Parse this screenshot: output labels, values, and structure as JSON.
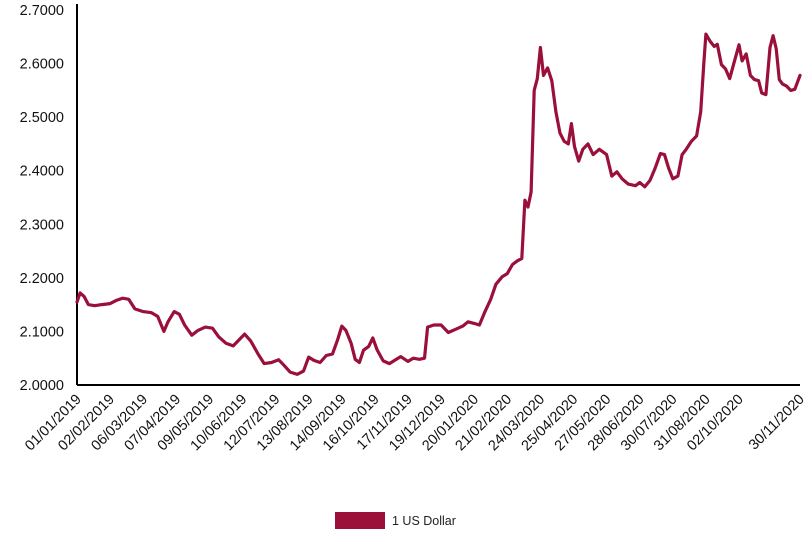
{
  "chart_data": {
    "type": "line",
    "title": "",
    "xlabel": "",
    "ylabel": "",
    "ylim": [
      2.0,
      2.7
    ],
    "y_ticks": [
      "2.0000",
      "2.1000",
      "2.2000",
      "2.3000",
      "2.4000",
      "2.5000",
      "2.6000",
      "2.7000"
    ],
    "x_ticks": [
      "01/01/2019",
      "02/02/2019",
      "06/03/2019",
      "07/04/2019",
      "09/05/2019",
      "10/06/2019",
      "12/07/2019",
      "13/08/2019",
      "14/09/2019",
      "16/10/2019",
      "17/11/2019",
      "19/12/2019",
      "20/01/2020",
      "21/02/2020",
      "24/03/2020",
      "25/04/2020",
      "27/05/2020",
      "28/06/2020",
      "30/07/2020",
      "31/08/2020",
      "02/10/2020",
      "30/11/2020"
    ],
    "grid": false,
    "legend_position": "bottom",
    "color": "#9b0f3b",
    "series": [
      {
        "name": "1 US Dollar",
        "points": [
          [
            "2019-01-01",
            2.155
          ],
          [
            "2019-01-04",
            2.172
          ],
          [
            "2019-01-08",
            2.165
          ],
          [
            "2019-01-12",
            2.15
          ],
          [
            "2019-01-18",
            2.148
          ],
          [
            "2019-01-25",
            2.15
          ],
          [
            "2019-02-02",
            2.152
          ],
          [
            "2019-02-08",
            2.158
          ],
          [
            "2019-02-14",
            2.162
          ],
          [
            "2019-02-20",
            2.16
          ],
          [
            "2019-02-26",
            2.142
          ],
          [
            "2019-03-06",
            2.137
          ],
          [
            "2019-03-14",
            2.135
          ],
          [
            "2019-03-20",
            2.128
          ],
          [
            "2019-03-26",
            2.1
          ],
          [
            "2019-03-30",
            2.118
          ],
          [
            "2019-04-05",
            2.137
          ],
          [
            "2019-04-10",
            2.132
          ],
          [
            "2019-04-15",
            2.112
          ],
          [
            "2019-04-22",
            2.093
          ],
          [
            "2019-04-28",
            2.102
          ],
          [
            "2019-05-05",
            2.108
          ],
          [
            "2019-05-12",
            2.106
          ],
          [
            "2019-05-18",
            2.09
          ],
          [
            "2019-05-25",
            2.078
          ],
          [
            "2019-06-01",
            2.073
          ],
          [
            "2019-06-07",
            2.085
          ],
          [
            "2019-06-12",
            2.095
          ],
          [
            "2019-06-18",
            2.082
          ],
          [
            "2019-06-25",
            2.058
          ],
          [
            "2019-07-01",
            2.04
          ],
          [
            "2019-07-08",
            2.042
          ],
          [
            "2019-07-15",
            2.047
          ],
          [
            "2019-07-20",
            2.037
          ],
          [
            "2019-07-26",
            2.024
          ],
          [
            "2019-08-02",
            2.02
          ],
          [
            "2019-08-08",
            2.026
          ],
          [
            "2019-08-13",
            2.052
          ],
          [
            "2019-08-18",
            2.046
          ],
          [
            "2019-08-24",
            2.042
          ],
          [
            "2019-08-30",
            2.055
          ],
          [
            "2019-09-05",
            2.058
          ],
          [
            "2019-09-10",
            2.085
          ],
          [
            "2019-09-14",
            2.11
          ],
          [
            "2019-09-18",
            2.102
          ],
          [
            "2019-09-23",
            2.078
          ],
          [
            "2019-09-27",
            2.048
          ],
          [
            "2019-10-01",
            2.042
          ],
          [
            "2019-10-05",
            2.065
          ],
          [
            "2019-10-10",
            2.072
          ],
          [
            "2019-10-14",
            2.088
          ],
          [
            "2019-10-18",
            2.066
          ],
          [
            "2019-10-24",
            2.045
          ],
          [
            "2019-10-30",
            2.04
          ],
          [
            "2019-11-05",
            2.047
          ],
          [
            "2019-11-10",
            2.053
          ],
          [
            "2019-11-17",
            2.044
          ],
          [
            "2019-11-22",
            2.05
          ],
          [
            "2019-11-28",
            2.048
          ],
          [
            "2019-12-03",
            2.05
          ],
          [
            "2019-12-06",
            2.108
          ],
          [
            "2019-12-12",
            2.112
          ],
          [
            "2019-12-19",
            2.112
          ],
          [
            "2019-12-26",
            2.098
          ],
          [
            "2020-01-02",
            2.104
          ],
          [
            "2020-01-09",
            2.11
          ],
          [
            "2020-01-14",
            2.118
          ],
          [
            "2020-01-20",
            2.115
          ],
          [
            "2020-01-25",
            2.112
          ],
          [
            "2020-01-30",
            2.135
          ],
          [
            "2020-02-05",
            2.16
          ],
          [
            "2020-02-10",
            2.188
          ],
          [
            "2020-02-16",
            2.202
          ],
          [
            "2020-02-21",
            2.208
          ],
          [
            "2020-02-26",
            2.225
          ],
          [
            "2020-03-02",
            2.232
          ],
          [
            "2020-03-06",
            2.236
          ],
          [
            "2020-03-09",
            2.345
          ],
          [
            "2020-03-12",
            2.332
          ],
          [
            "2020-03-15",
            2.36
          ],
          [
            "2020-03-18",
            2.55
          ],
          [
            "2020-03-21",
            2.572
          ],
          [
            "2020-03-24",
            2.63
          ],
          [
            "2020-03-27",
            2.578
          ],
          [
            "2020-03-31",
            2.592
          ],
          [
            "2020-04-04",
            2.568
          ],
          [
            "2020-04-08",
            2.51
          ],
          [
            "2020-04-12",
            2.47
          ],
          [
            "2020-04-16",
            2.455
          ],
          [
            "2020-04-20",
            2.45
          ],
          [
            "2020-04-23",
            2.488
          ],
          [
            "2020-04-26",
            2.445
          ],
          [
            "2020-04-30",
            2.418
          ],
          [
            "2020-05-04",
            2.44
          ],
          [
            "2020-05-09",
            2.45
          ],
          [
            "2020-05-14",
            2.43
          ],
          [
            "2020-05-20",
            2.44
          ],
          [
            "2020-05-27",
            2.43
          ],
          [
            "2020-06-01",
            2.39
          ],
          [
            "2020-06-06",
            2.398
          ],
          [
            "2020-06-11",
            2.385
          ],
          [
            "2020-06-17",
            2.375
          ],
          [
            "2020-06-24",
            2.372
          ],
          [
            "2020-06-28",
            2.378
          ],
          [
            "2020-07-03",
            2.37
          ],
          [
            "2020-07-08",
            2.382
          ],
          [
            "2020-07-13",
            2.405
          ],
          [
            "2020-07-18",
            2.432
          ],
          [
            "2020-07-22",
            2.43
          ],
          [
            "2020-07-26",
            2.405
          ],
          [
            "2020-07-30",
            2.385
          ],
          [
            "2020-08-04",
            2.39
          ],
          [
            "2020-08-08",
            2.43
          ],
          [
            "2020-08-12",
            2.44
          ],
          [
            "2020-08-17",
            2.455
          ],
          [
            "2020-08-22",
            2.465
          ],
          [
            "2020-08-26",
            2.51
          ],
          [
            "2020-08-29",
            2.6
          ],
          [
            "2020-08-31",
            2.655
          ],
          [
            "2020-09-04",
            2.642
          ],
          [
            "2020-09-08",
            2.632
          ],
          [
            "2020-09-11",
            2.636
          ],
          [
            "2020-09-15",
            2.598
          ],
          [
            "2020-09-19",
            2.59
          ],
          [
            "2020-09-23",
            2.572
          ],
          [
            "2020-09-27",
            2.6
          ],
          [
            "2020-10-02",
            2.635
          ],
          [
            "2020-10-05",
            2.605
          ],
          [
            "2020-10-09",
            2.618
          ],
          [
            "2020-10-13",
            2.578
          ],
          [
            "2020-10-17",
            2.57
          ],
          [
            "2020-10-21",
            2.568
          ],
          [
            "2020-10-24",
            2.545
          ],
          [
            "2020-10-28",
            2.542
          ],
          [
            "2020-11-01",
            2.63
          ],
          [
            "2020-11-04",
            2.652
          ],
          [
            "2020-11-07",
            2.628
          ],
          [
            "2020-11-10",
            2.57
          ],
          [
            "2020-11-13",
            2.562
          ],
          [
            "2020-11-17",
            2.558
          ],
          [
            "2020-11-21",
            2.55
          ],
          [
            "2020-11-25",
            2.552
          ],
          [
            "2020-11-30",
            2.578
          ]
        ]
      }
    ]
  }
}
